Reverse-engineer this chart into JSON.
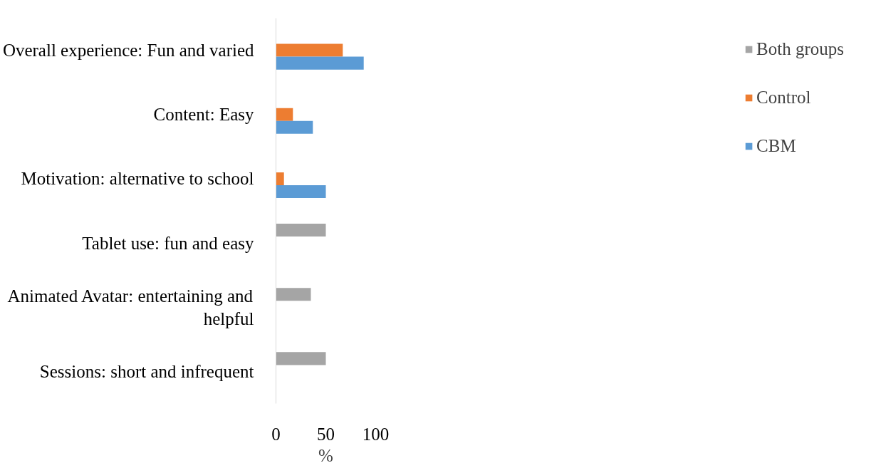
{
  "chart_data": {
    "type": "bar",
    "orientation": "horizontal",
    "xlabel": "%",
    "categories": [
      "Overall experience: Fun and varied",
      "Content: Easy",
      "Motivation: alternative to school",
      "Tablet use: fun and easy",
      "Animated Avatar: entertaining and helpful",
      "Sessions: short and infrequent"
    ],
    "series": [
      {
        "name": "Both groups",
        "color": "#a5a5a5",
        "values": [
          null,
          null,
          null,
          50,
          35,
          50
        ]
      },
      {
        "name": "Control",
        "color": "#ed7d31",
        "values": [
          67,
          17,
          8,
          null,
          null,
          null
        ]
      },
      {
        "name": "CBM",
        "color": "#5b9bd5",
        "values": [
          88,
          37,
          50,
          null,
          null,
          null
        ]
      }
    ],
    "xlim": [
      0,
      100
    ],
    "xticks": [
      0,
      50,
      100
    ],
    "grid": false,
    "legend": "right"
  }
}
